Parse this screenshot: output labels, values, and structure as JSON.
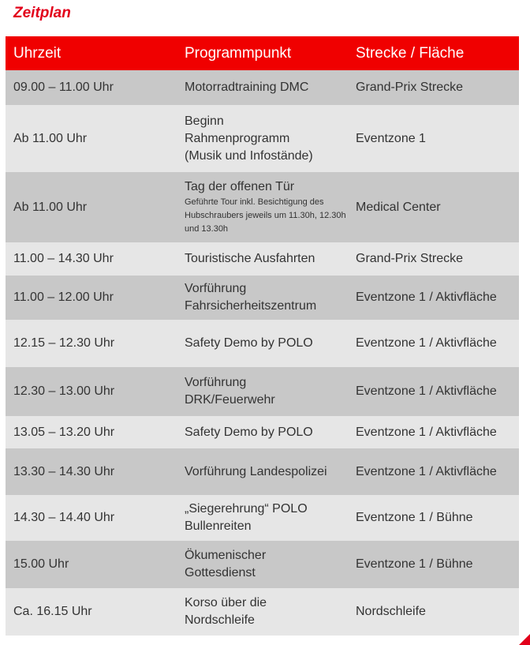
{
  "title": "Zeitplan",
  "headers": [
    "Uhrzeit",
    "Programmpunkt",
    "Strecke / Fläche"
  ],
  "rows": [
    {
      "time": "09.00 – 11.00 Uhr",
      "program": "Motorradtraining DMC",
      "sub": "",
      "place": "Grand-Prix Strecke"
    },
    {
      "time": "Ab 11.00 Uhr",
      "program": "Beginn\nRahmenprogramm\n(Musik und Infostände)",
      "sub": "",
      "place": "Eventzone 1"
    },
    {
      "time": "Ab 11.00 Uhr",
      "program": "Tag der offenen Tür",
      "sub": "Geführte Tour inkl. Besichtigung des Hubschraubers jeweils um 11.30h, 12.30h und 13.30h",
      "place": "Medical Center"
    },
    {
      "time": "11.00 – 14.30 Uhr",
      "program": "Touristische Ausfahrten",
      "sub": "",
      "place": "Grand-Prix Strecke"
    },
    {
      "time": "11.00 – 12.00 Uhr",
      "program": "Vorführung\nFahrsicherheitszentrum",
      "sub": "",
      "place": "Eventzone 1 / Aktivfläche"
    },
    {
      "time": "12.15 – 12.30 Uhr",
      "program": "Safety Demo by POLO",
      "sub": "",
      "place": "Eventzone 1 / Aktivfläche"
    },
    {
      "time": "12.30 – 13.00 Uhr",
      "program": "Vorführung\nDRK/Feuerwehr",
      "sub": "",
      "place": "Eventzone 1 / Aktivfläche"
    },
    {
      "time": "13.05 – 13.20 Uhr",
      "program": "Safety Demo by POLO",
      "sub": "",
      "place": "Eventzone 1 / Aktivfläche"
    },
    {
      "time": "13.30 – 14.30 Uhr",
      "program": "Vorführung Landespolizei",
      "sub": "",
      "place": "Eventzone 1 / Aktivfläche"
    },
    {
      "time": "14.30 – 14.40 Uhr",
      "program": "„Siegerehrung“ POLO\nBullenreiten",
      "sub": "",
      "place": "Eventzone 1 / Bühne"
    },
    {
      "time": "15.00 Uhr",
      "program": "Ökumenischer\nGottesdienst",
      "sub": "",
      "place": "Eventzone 1 / Bühne"
    },
    {
      "time": "Ca. 16.15 Uhr",
      "program": "Korso über die\nNordschleife",
      "sub": "",
      "place": "Nordschleife"
    }
  ]
}
